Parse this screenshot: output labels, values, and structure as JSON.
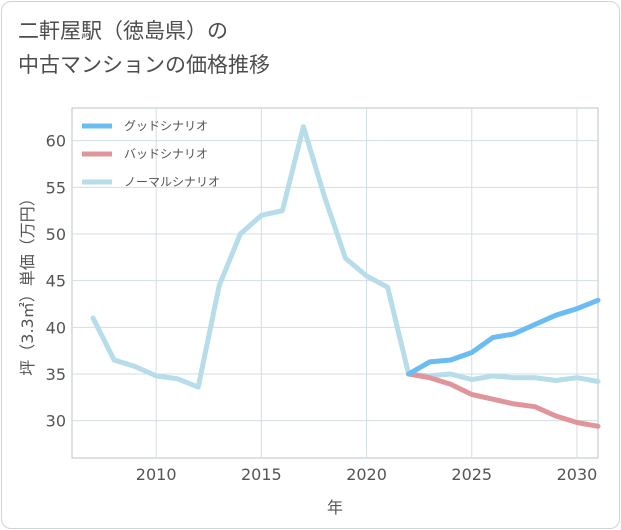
{
  "title": {
    "line1": "二軒屋駅（徳島県）の",
    "line2": "中古マンションの価格推移"
  },
  "chart_data": {
    "type": "line",
    "xlabel": "年",
    "ylabel": "坪（3.3㎡）単価（万円）",
    "xlim": [
      2006,
      2031
    ],
    "ylim": [
      26,
      63.5
    ],
    "xticks": [
      2010,
      2015,
      2020,
      2025,
      2030
    ],
    "yticks": [
      30,
      35,
      40,
      45,
      50,
      55,
      60
    ],
    "grid": true,
    "legend_position": "top-left",
    "series": [
      {
        "name": "グッドシナリオ",
        "color": "#6bbcf0",
        "x": [
          2022,
          2023,
          2024,
          2025,
          2026,
          2027,
          2028,
          2029,
          2030,
          2031
        ],
        "values": [
          35.0,
          36.3,
          36.5,
          37.3,
          38.9,
          39.3,
          40.3,
          41.3,
          42.0,
          42.9
        ]
      },
      {
        "name": "バッドシナリオ",
        "color": "#e0959b",
        "x": [
          2022,
          2023,
          2024,
          2025,
          2026,
          2027,
          2028,
          2029,
          2030,
          2031
        ],
        "values": [
          35.0,
          34.6,
          33.9,
          32.8,
          32.3,
          31.8,
          31.5,
          30.5,
          29.8,
          29.4
        ]
      },
      {
        "name": "ノーマルシナリオ",
        "color": "#b7dcea",
        "x": [
          2007,
          2008,
          2009,
          2010,
          2011,
          2012,
          2013,
          2014,
          2015,
          2016,
          2017,
          2018,
          2019,
          2020,
          2021,
          2022,
          2023,
          2024,
          2025,
          2026,
          2027,
          2028,
          2029,
          2030,
          2031
        ],
        "values": [
          41.0,
          36.5,
          35.8,
          34.8,
          34.5,
          33.6,
          44.5,
          50.0,
          52.0,
          52.5,
          61.5,
          54.0,
          47.4,
          45.5,
          44.3,
          35.0,
          34.8,
          35.0,
          34.4,
          34.8,
          34.6,
          34.6,
          34.3,
          34.6,
          34.2
        ]
      }
    ]
  }
}
